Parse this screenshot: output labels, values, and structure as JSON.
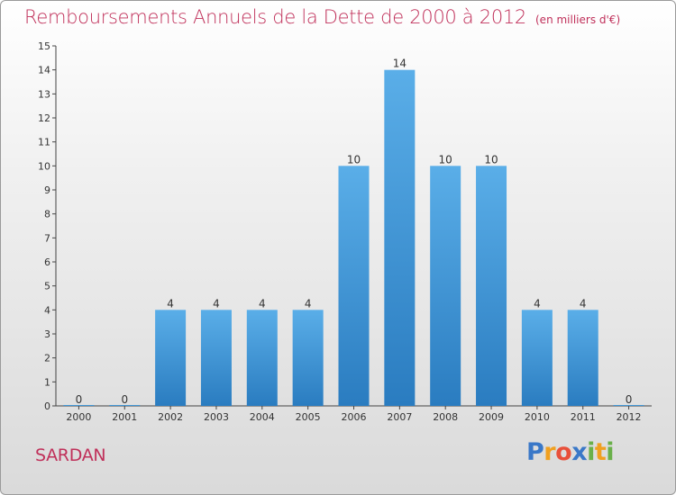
{
  "header": {
    "title": "Remboursements Annuels de la Dette de 2000 à 2012",
    "unit": "(en milliers d'€)"
  },
  "footer": {
    "city": "SARDAN",
    "brand_letters": [
      {
        "ch": "P",
        "color": "#3a78c8"
      },
      {
        "ch": "r",
        "color": "#f0a020"
      },
      {
        "ch": "o",
        "color": "#e8503a"
      },
      {
        "ch": "x",
        "color": "#3a78c8"
      },
      {
        "ch": "i",
        "color": "#6ab04a"
      },
      {
        "ch": "t",
        "color": "#f0a020"
      },
      {
        "ch": "i",
        "color": "#6ab04a"
      }
    ]
  },
  "colors": {
    "title": "#c0305a",
    "bar_light": "#5aaee8",
    "bar_dark": "#2a7cc0"
  },
  "chart_data": {
    "type": "bar",
    "title": "Remboursements Annuels de la Dette de 2000 à 2012",
    "xlabel": "",
    "ylabel": "",
    "categories": [
      "2000",
      "2001",
      "2002",
      "2003",
      "2004",
      "2005",
      "2006",
      "2007",
      "2008",
      "2009",
      "2010",
      "2011",
      "2012"
    ],
    "values": [
      0,
      0,
      4,
      4,
      4,
      4,
      10,
      14,
      10,
      10,
      4,
      4,
      0
    ],
    "ylim": [
      0,
      15
    ],
    "yticks": [
      0,
      1,
      2,
      3,
      4,
      5,
      6,
      7,
      8,
      9,
      10,
      11,
      12,
      13,
      14,
      15
    ],
    "grid": false,
    "legend": "none"
  }
}
